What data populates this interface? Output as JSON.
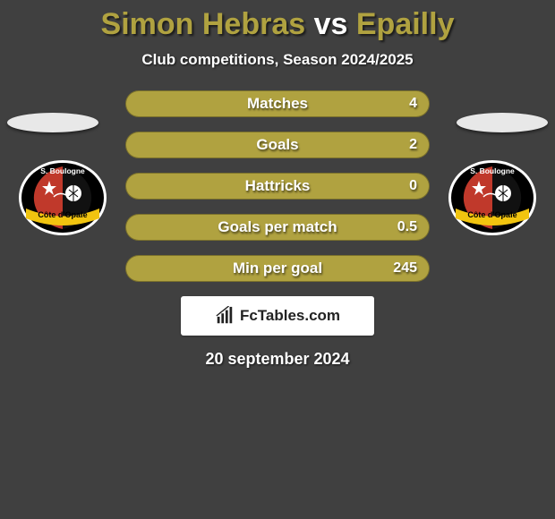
{
  "title": {
    "left": "Simon Hebras",
    "vs": "vs",
    "right": "Epailly"
  },
  "title_colors": {
    "left": "#b0a240",
    "vs": "#ffffff",
    "right": "#b0a240"
  },
  "subtitle": "Club competitions, Season 2024/2025",
  "date": "20 september 2024",
  "bar_color_right": "#b0a240",
  "row_width": 340,
  "rows": [
    {
      "label": "Matches",
      "right_value": "4",
      "right_width": 340
    },
    {
      "label": "Goals",
      "right_value": "2",
      "right_width": 340
    },
    {
      "label": "Hattricks",
      "right_value": "0",
      "right_width": 340
    },
    {
      "label": "Goals per match",
      "right_value": "0.5",
      "right_width": 340
    },
    {
      "label": "Min per goal",
      "right_value": "245",
      "right_width": 340
    }
  ],
  "brand": {
    "text": "FcTables.com"
  },
  "club_logo": {
    "bg": "#000000",
    "ring": "#ffffff",
    "left_panel": "#c0392b",
    "right_panel": "#111111",
    "band": "#f1c40f",
    "band_text": "Côte d'Opale",
    "top_text": "S. Boulogne",
    "star": "#ffffff",
    "ball": "#ffffff"
  }
}
